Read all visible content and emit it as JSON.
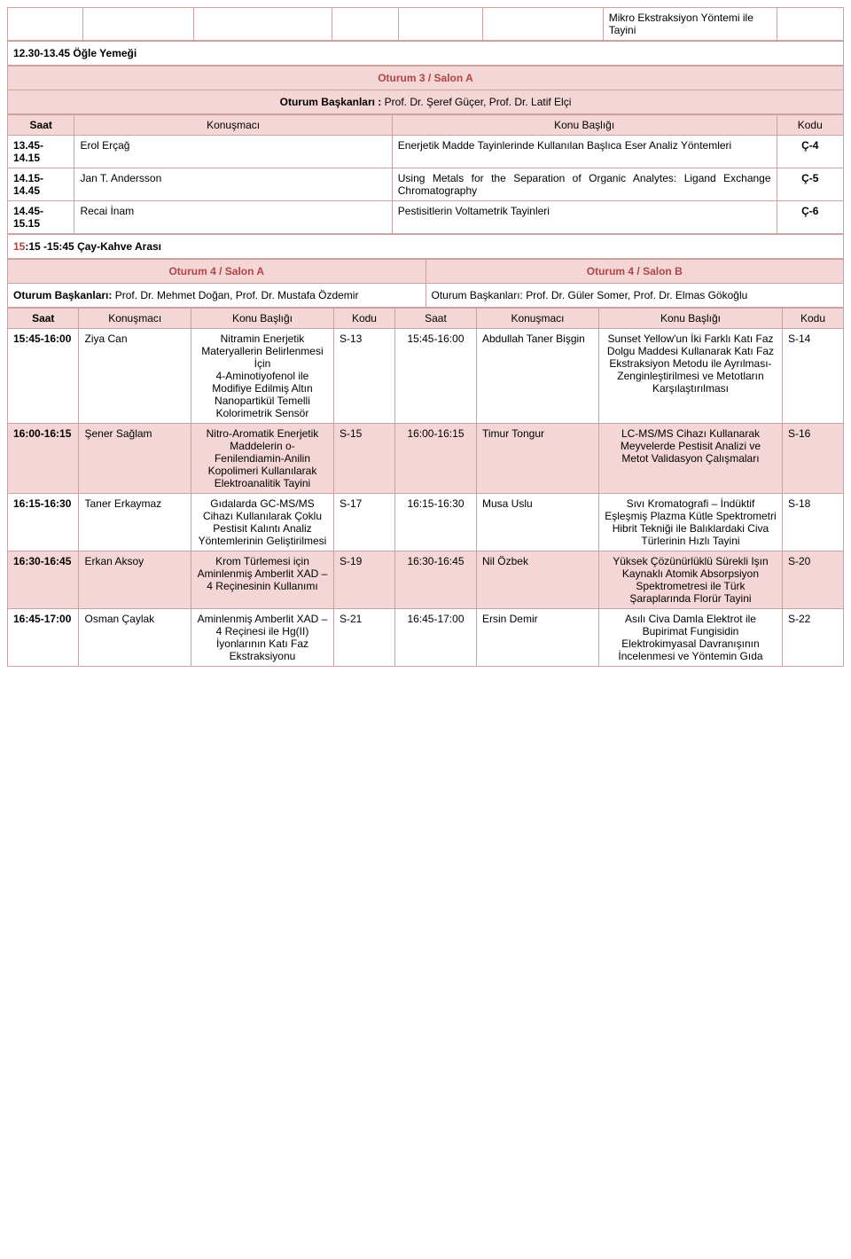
{
  "topRow": {
    "cell": "Mikro Ekstraksiyon Yöntemi ile Tayini"
  },
  "lunch": "12.30-13.45 Öğle Yemeği",
  "session3": {
    "title": "Oturum 3 / Salon A",
    "chairs_label": "Oturum Başkanları :",
    "chairs": " Prof. Dr. Şeref Güçer, Prof. Dr. Latif Elçi",
    "headers": {
      "saat": "Saat",
      "speaker": "Konuşmacı",
      "topic": "Konu Başlığı",
      "code": "Kodu"
    },
    "rows": [
      {
        "saat": "13.45-14.15",
        "speaker": "Erol Erçağ",
        "topic": "Enerjetik Madde Tayinlerinde Kullanılan Başlıca Eser Analiz Yöntemleri",
        "code": "Ç-4"
      },
      {
        "saat": "14.15-14.45",
        "speaker": "Jan T. Andersson",
        "topic": "Using Metals for the Separation of Organic Analytes: Ligand Exchange Chromatography",
        "code": "Ç-5"
      },
      {
        "saat": "14.45-15.15",
        "speaker": "Recai İnam",
        "topic": "Pestisitlerin Voltametrik Tayinleri",
        "code": "Ç-6"
      }
    ]
  },
  "break": "15:15 -15:45 Çay-Kahve Arası",
  "session4": {
    "titleA": "Oturum 4 / Salon A",
    "titleB": "Oturum 4 / Salon B",
    "chairsA_label": "Oturum Başkanları:",
    "chairsA": " Prof. Dr. Mehmet Doğan, Prof. Dr. Mustafa Özdemir",
    "chairsB": "Oturum Başkanları: Prof. Dr. Güler Somer, Prof. Dr. Elmas Gökoğlu",
    "headers": {
      "saat": "Saat",
      "speaker": "Konuşmacı",
      "topic": "Konu Başlığı",
      "code": "Kodu"
    },
    "rows": [
      {
        "a": {
          "saat": "15:45-16:00",
          "speaker": "Ziya Can",
          "topic": "Nitramin Enerjetik Materyallerin Belirlenmesi İçin\n4-Aminotiyofenol ile Modifiye Edilmiş Altın Nanopartikül Temelli Kolorimetrik Sensör",
          "code": "S-13"
        },
        "b": {
          "saat": "15:45-16:00",
          "speaker": "Abdullah Taner Bişgin",
          "topic": "Sunset Yellow'un İki Farklı Katı Faz Dolgu Maddesi Kullanarak Katı Faz Ekstraksiyon Metodu ile Ayrılması-Zenginleştirilmesi ve Metotların Karşılaştırılması",
          "code": "S-14"
        }
      },
      {
        "a": {
          "saat": "16:00-16:15",
          "speaker": "Şener Sağlam",
          "topic": "Nitro-Aromatik Enerjetik Maddelerin o-Fenilendiamin-Anilin Kopolimeri Kullanılarak Elektroanalitik Tayini",
          "code": "S-15"
        },
        "b": {
          "saat": "16:00-16:15",
          "speaker": "Timur Tongur",
          "topic": "LC-MS/MS Cihazı Kullanarak Meyvelerde Pestisit Analizi ve\nMetot Validasyon Çalışmaları",
          "code": "S-16"
        }
      },
      {
        "a": {
          "saat": "16:15-16:30",
          "speaker": "Taner Erkaymaz",
          "topic": "Gıdalarda GC-MS/MS Cihazı Kullanılarak Çoklu Pestisit Kalıntı Analiz Yöntemlerinin Geliştirilmesi",
          "code": "S-17"
        },
        "b": {
          "saat": "16:15-16:30",
          "speaker": "Musa Uslu",
          "topic": "Sıvı Kromatografi – İndüktif Eşleşmiş Plazma Kütle Spektrometri Hibrit Tekniği ile Balıklardaki Civa Türlerinin Hızlı Tayini",
          "code": "S-18"
        }
      },
      {
        "a": {
          "saat": "16:30-16:45",
          "speaker": "Erkan Aksoy",
          "topic": "Krom Türlemesi için Aminlenmiş Amberlit XAD – 4 Reçinesinin Kullanımı",
          "code": "S-19"
        },
        "b": {
          "saat": "16:30-16:45",
          "speaker": "Nil Özbek",
          "topic": "Yüksek Çözünürlüklü Sürekli Işın Kaynaklı Atomik Absorpsiyon Spektrometresi ile Türk Şaraplarında Florür Tayini",
          "code": "S-20"
        }
      },
      {
        "a": {
          "saat": "16:45-17:00",
          "speaker": "Osman Çaylak",
          "topic": "Aminlenmiş Amberlit XAD – 4 Reçinesi ile Hg(II) İyonlarının Katı Faz Ekstraksiyonu",
          "code": "S-21"
        },
        "b": {
          "saat": "16:45-17:00",
          "speaker": "Ersin Demir",
          "topic": "Asılı Civa Damla Elektrot ile Bupirimat Fungisidin Elektrokimyasal Davranışının İncelenmesi ve Yöntemin Gıda",
          "code": "S-22"
        }
      }
    ]
  },
  "row_shading": [
    "#ffffff",
    "#f4d6d6",
    "#ffffff",
    "#f4d6d6",
    "#ffffff"
  ]
}
